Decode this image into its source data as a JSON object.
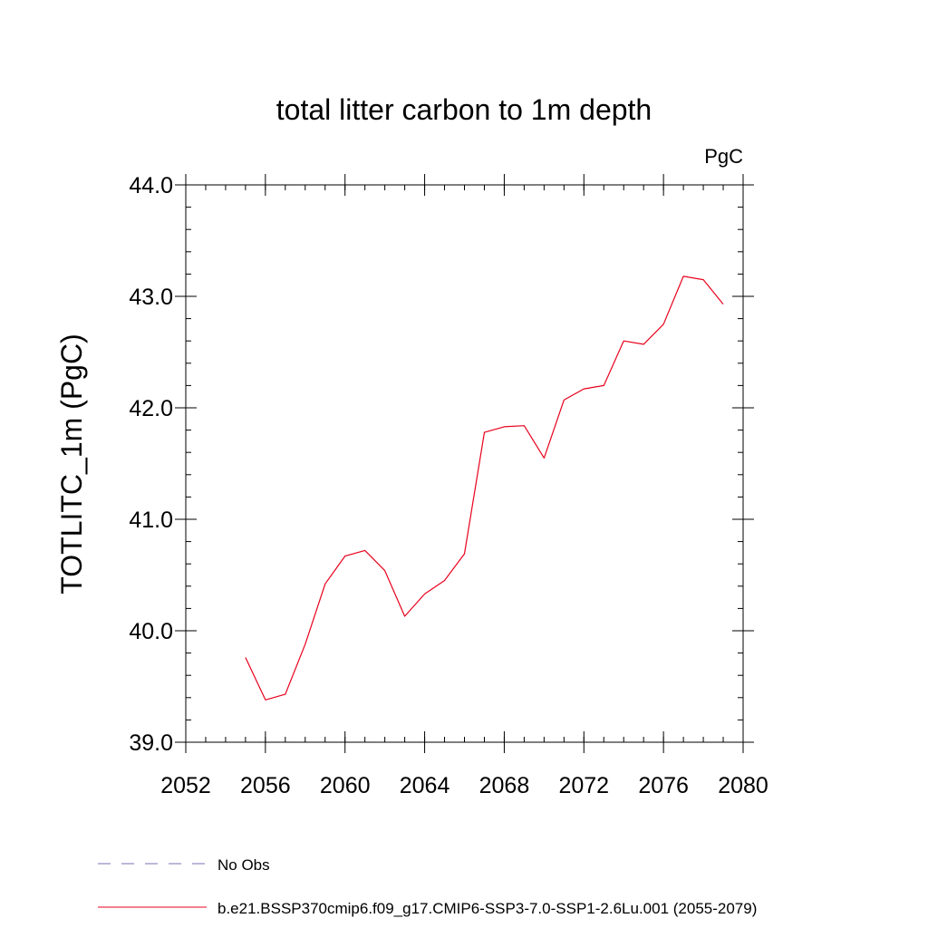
{
  "chart_data": {
    "type": "line",
    "title": "total litter carbon to 1m depth",
    "units_label": "PgC",
    "ylabel": "TOTLITC_1m  (PgC)",
    "xlabel": "",
    "xlim": [
      2052,
      2080
    ],
    "ylim": [
      39.0,
      44.0
    ],
    "x_ticks": [
      2052,
      2056,
      2060,
      2064,
      2068,
      2072,
      2076,
      2080
    ],
    "x_tick_labels": [
      "2052",
      "2056",
      "2060",
      "2064",
      "2068",
      "2072",
      "2076",
      "2080"
    ],
    "y_ticks": [
      39.0,
      40.0,
      41.0,
      42.0,
      43.0,
      44.0
    ],
    "y_tick_labels": [
      "39.0",
      "40.0",
      "41.0",
      "42.0",
      "43.0",
      "44.0"
    ],
    "grid": false,
    "legend_placement": "bottom-left",
    "legend": [
      {
        "label": "No Obs",
        "style": "dashed",
        "color": "#7b6fb0"
      },
      {
        "label": "b.e21.BSSP370cmip6.f09_g17.CMIP6-SSP3-7.0-SSP1-2.6Lu.001 (2055-2079)",
        "style": "solid",
        "color": "#e8001c"
      }
    ],
    "series": [
      {
        "name": "b.e21.BSSP370cmip6.f09_g17.CMIP6-SSP3-7.0-SSP1-2.6Lu.001 (2055-2079)",
        "color": "#e8001c",
        "x": [
          2055,
          2056,
          2057,
          2058,
          2059,
          2060,
          2061,
          2062,
          2063,
          2064,
          2065,
          2066,
          2067,
          2068,
          2069,
          2070,
          2071,
          2072,
          2073,
          2074,
          2075,
          2076,
          2077,
          2078,
          2079
        ],
        "y": [
          39.76,
          39.38,
          39.43,
          39.88,
          40.42,
          40.67,
          40.72,
          40.54,
          40.13,
          40.33,
          40.45,
          40.69,
          41.78,
          41.83,
          41.84,
          41.55,
          42.07,
          42.17,
          42.2,
          42.6,
          42.57,
          42.75,
          43.18,
          43.15,
          42.93
        ]
      }
    ]
  }
}
